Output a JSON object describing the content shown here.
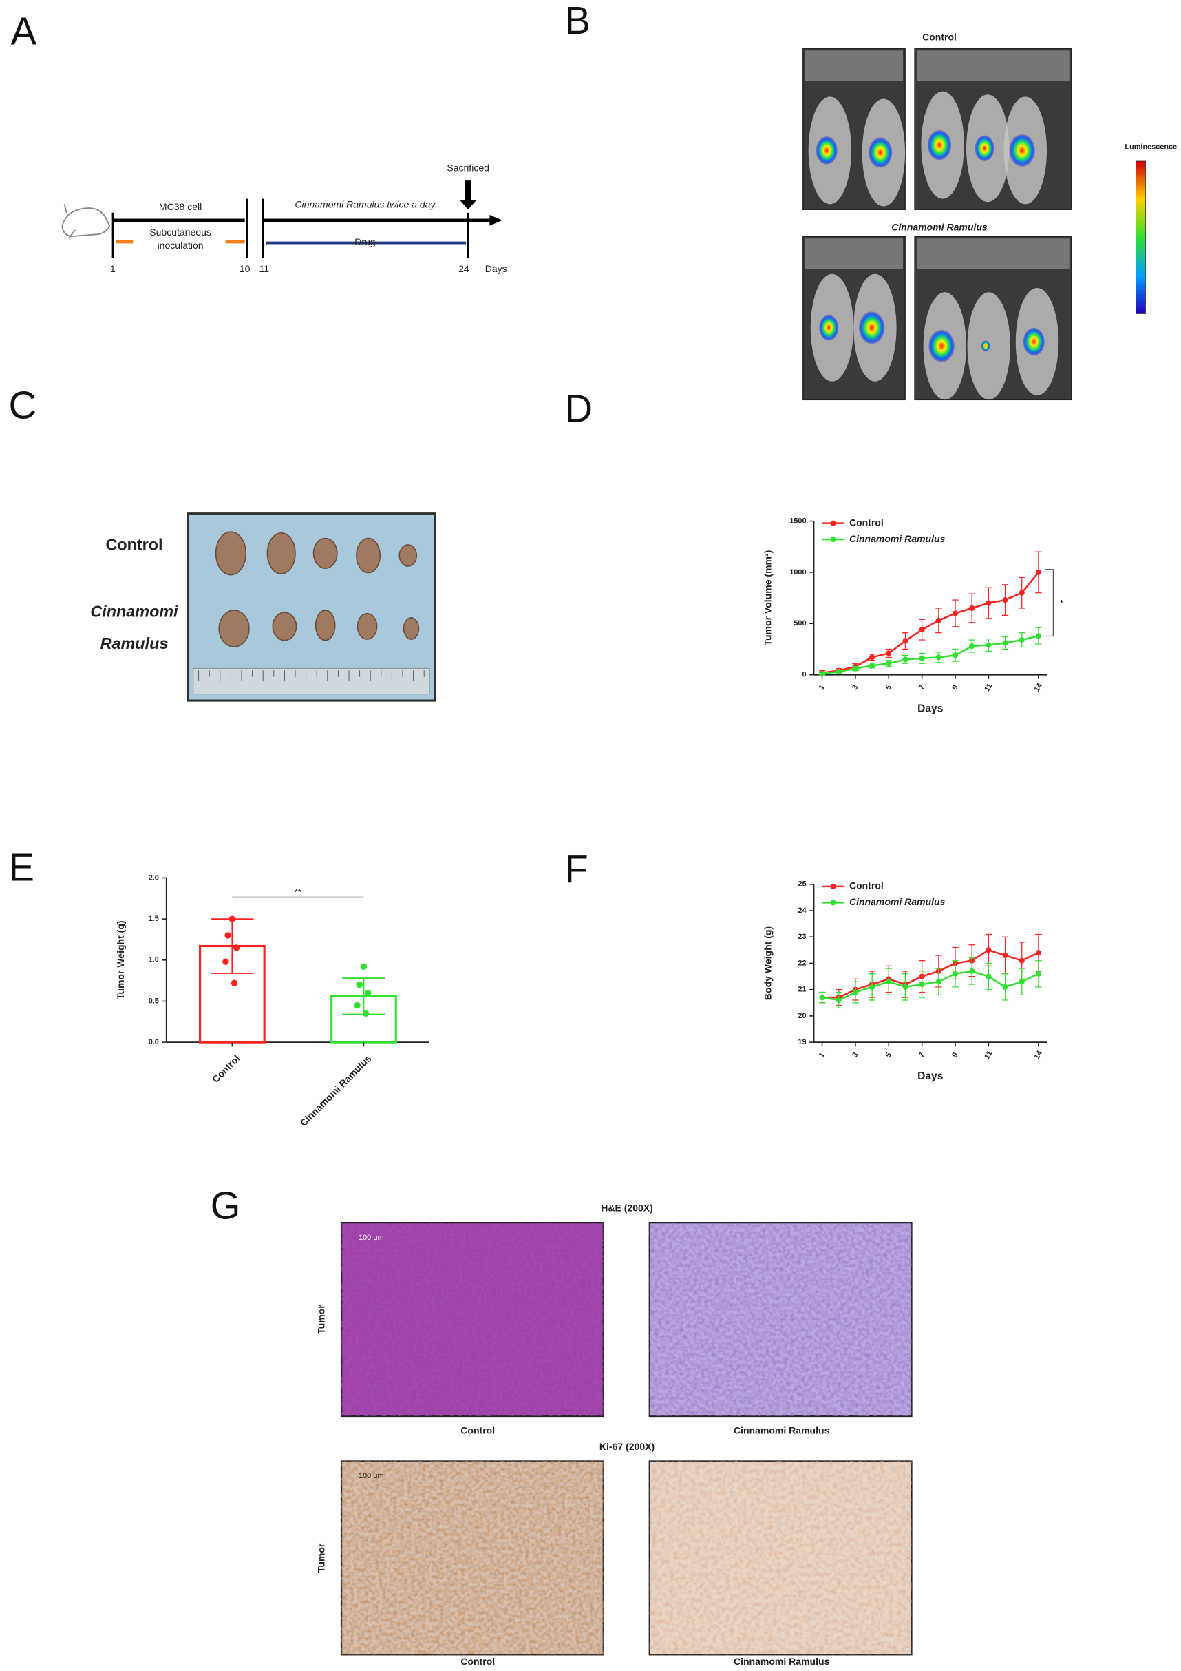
{
  "panel_labels": [
    "A",
    "B",
    "C",
    "D",
    "E",
    "F",
    "G"
  ],
  "timeline": {
    "cell": "MC38 cell",
    "inoculation": [
      "Subcutaneous",
      "inoculation"
    ],
    "treatment": "Cinnamomi Ramulus twice a day",
    "drug": "Drug",
    "sacrificed": "Sacrificed",
    "days": [
      "1",
      "10",
      "11",
      "24"
    ],
    "unit": "Days"
  },
  "imaging": {
    "control": "Control",
    "treated": "Cinnamomi Ramulus",
    "colorbar_label": "Luminescence"
  },
  "tumor_photo": {
    "control": "Control",
    "treated": [
      "Cinnamomi",
      "Ramulus"
    ]
  },
  "chart_data": [
    {
      "type": "line",
      "ylabel": "Tumor Volume (mm³)",
      "xlabel": "Days",
      "x": [
        1,
        2,
        3,
        4,
        5,
        6,
        7,
        8,
        9,
        10,
        11,
        12,
        13,
        14
      ],
      "xlim": [
        0.5,
        14.5
      ],
      "xticks": [
        1,
        3,
        5,
        7,
        9,
        11,
        14
      ],
      "ylim": [
        0,
        1500
      ],
      "yticks": [
        0,
        500,
        1000,
        1500
      ],
      "annotation": "*",
      "series": [
        {
          "name": "Control",
          "color": "#ff2020",
          "values": [
            20,
            40,
            80,
            170,
            210,
            330,
            440,
            530,
            600,
            650,
            700,
            730,
            800,
            1000
          ],
          "errors": [
            20,
            20,
            30,
            30,
            40,
            80,
            100,
            120,
            130,
            140,
            150,
            150,
            150,
            200
          ]
        },
        {
          "name": "Cinnamomi Ramulus",
          "color": "#30e030",
          "values": [
            10,
            30,
            60,
            90,
            110,
            150,
            160,
            170,
            190,
            280,
            290,
            310,
            340,
            380
          ],
          "errors": [
            10,
            15,
            20,
            25,
            30,
            40,
            50,
            50,
            60,
            60,
            60,
            60,
            70,
            80
          ]
        }
      ]
    },
    {
      "type": "bar",
      "ylabel": "Tumor Weight (g)",
      "categories": [
        "Control",
        "Cinnamomi  Ramulus"
      ],
      "values": [
        1.17,
        0.56
      ],
      "errors": [
        0.33,
        0.22
      ],
      "colors": [
        "#ff2020",
        "#30e030"
      ],
      "points": [
        [
          1.5,
          1.3,
          1.15,
          0.98,
          0.72
        ],
        [
          0.92,
          0.7,
          0.6,
          0.45,
          0.35
        ]
      ],
      "ylim": [
        0,
        2
      ],
      "yticks": [
        {
          "value": 0,
          "label": "0.0"
        },
        0.5,
        {
          "value": 1,
          "label": "1.0"
        },
        1.5,
        {
          "value": 2,
          "label": "2.0"
        }
      ],
      "annotation": "**"
    },
    {
      "type": "line",
      "ylabel": "Body Weight (g)",
      "xlabel": "Days",
      "x": [
        1,
        2,
        3,
        4,
        5,
        6,
        7,
        8,
        9,
        10,
        11,
        12,
        13,
        14
      ],
      "xlim": [
        0.5,
        14.5
      ],
      "xticks": [
        1,
        3,
        5,
        7,
        9,
        11,
        14
      ],
      "ylim": [
        19,
        25
      ],
      "yticks": [
        19,
        20,
        21,
        22,
        23,
        24,
        25
      ],
      "series": [
        {
          "name": "Control",
          "color": "#ff2020",
          "values": [
            20.7,
            20.7,
            21.0,
            21.2,
            21.4,
            21.2,
            21.5,
            21.7,
            22.0,
            22.1,
            22.5,
            22.3,
            22.1,
            22.4
          ],
          "errors": [
            0.2,
            0.3,
            0.4,
            0.5,
            0.5,
            0.5,
            0.6,
            0.6,
            0.6,
            0.6,
            0.6,
            0.7,
            0.7,
            0.7
          ]
        },
        {
          "name": "Cinnamomi Ramulus",
          "color": "#30e030",
          "values": [
            20.7,
            20.6,
            20.9,
            21.1,
            21.3,
            21.1,
            21.2,
            21.3,
            21.6,
            21.7,
            21.5,
            21.1,
            21.3,
            21.6
          ],
          "errors": [
            0.2,
            0.3,
            0.4,
            0.5,
            0.5,
            0.5,
            0.5,
            0.5,
            0.5,
            0.5,
            0.5,
            0.5,
            0.5,
            0.5
          ]
        }
      ]
    }
  ],
  "histology": {
    "he_title": "H&E (200X)",
    "ki_title": "Ki-67 (200X)",
    "row_label": "Tumor",
    "scale": "100 μm",
    "captions": [
      "Control",
      "Cinnamomi Ramulus"
    ]
  }
}
